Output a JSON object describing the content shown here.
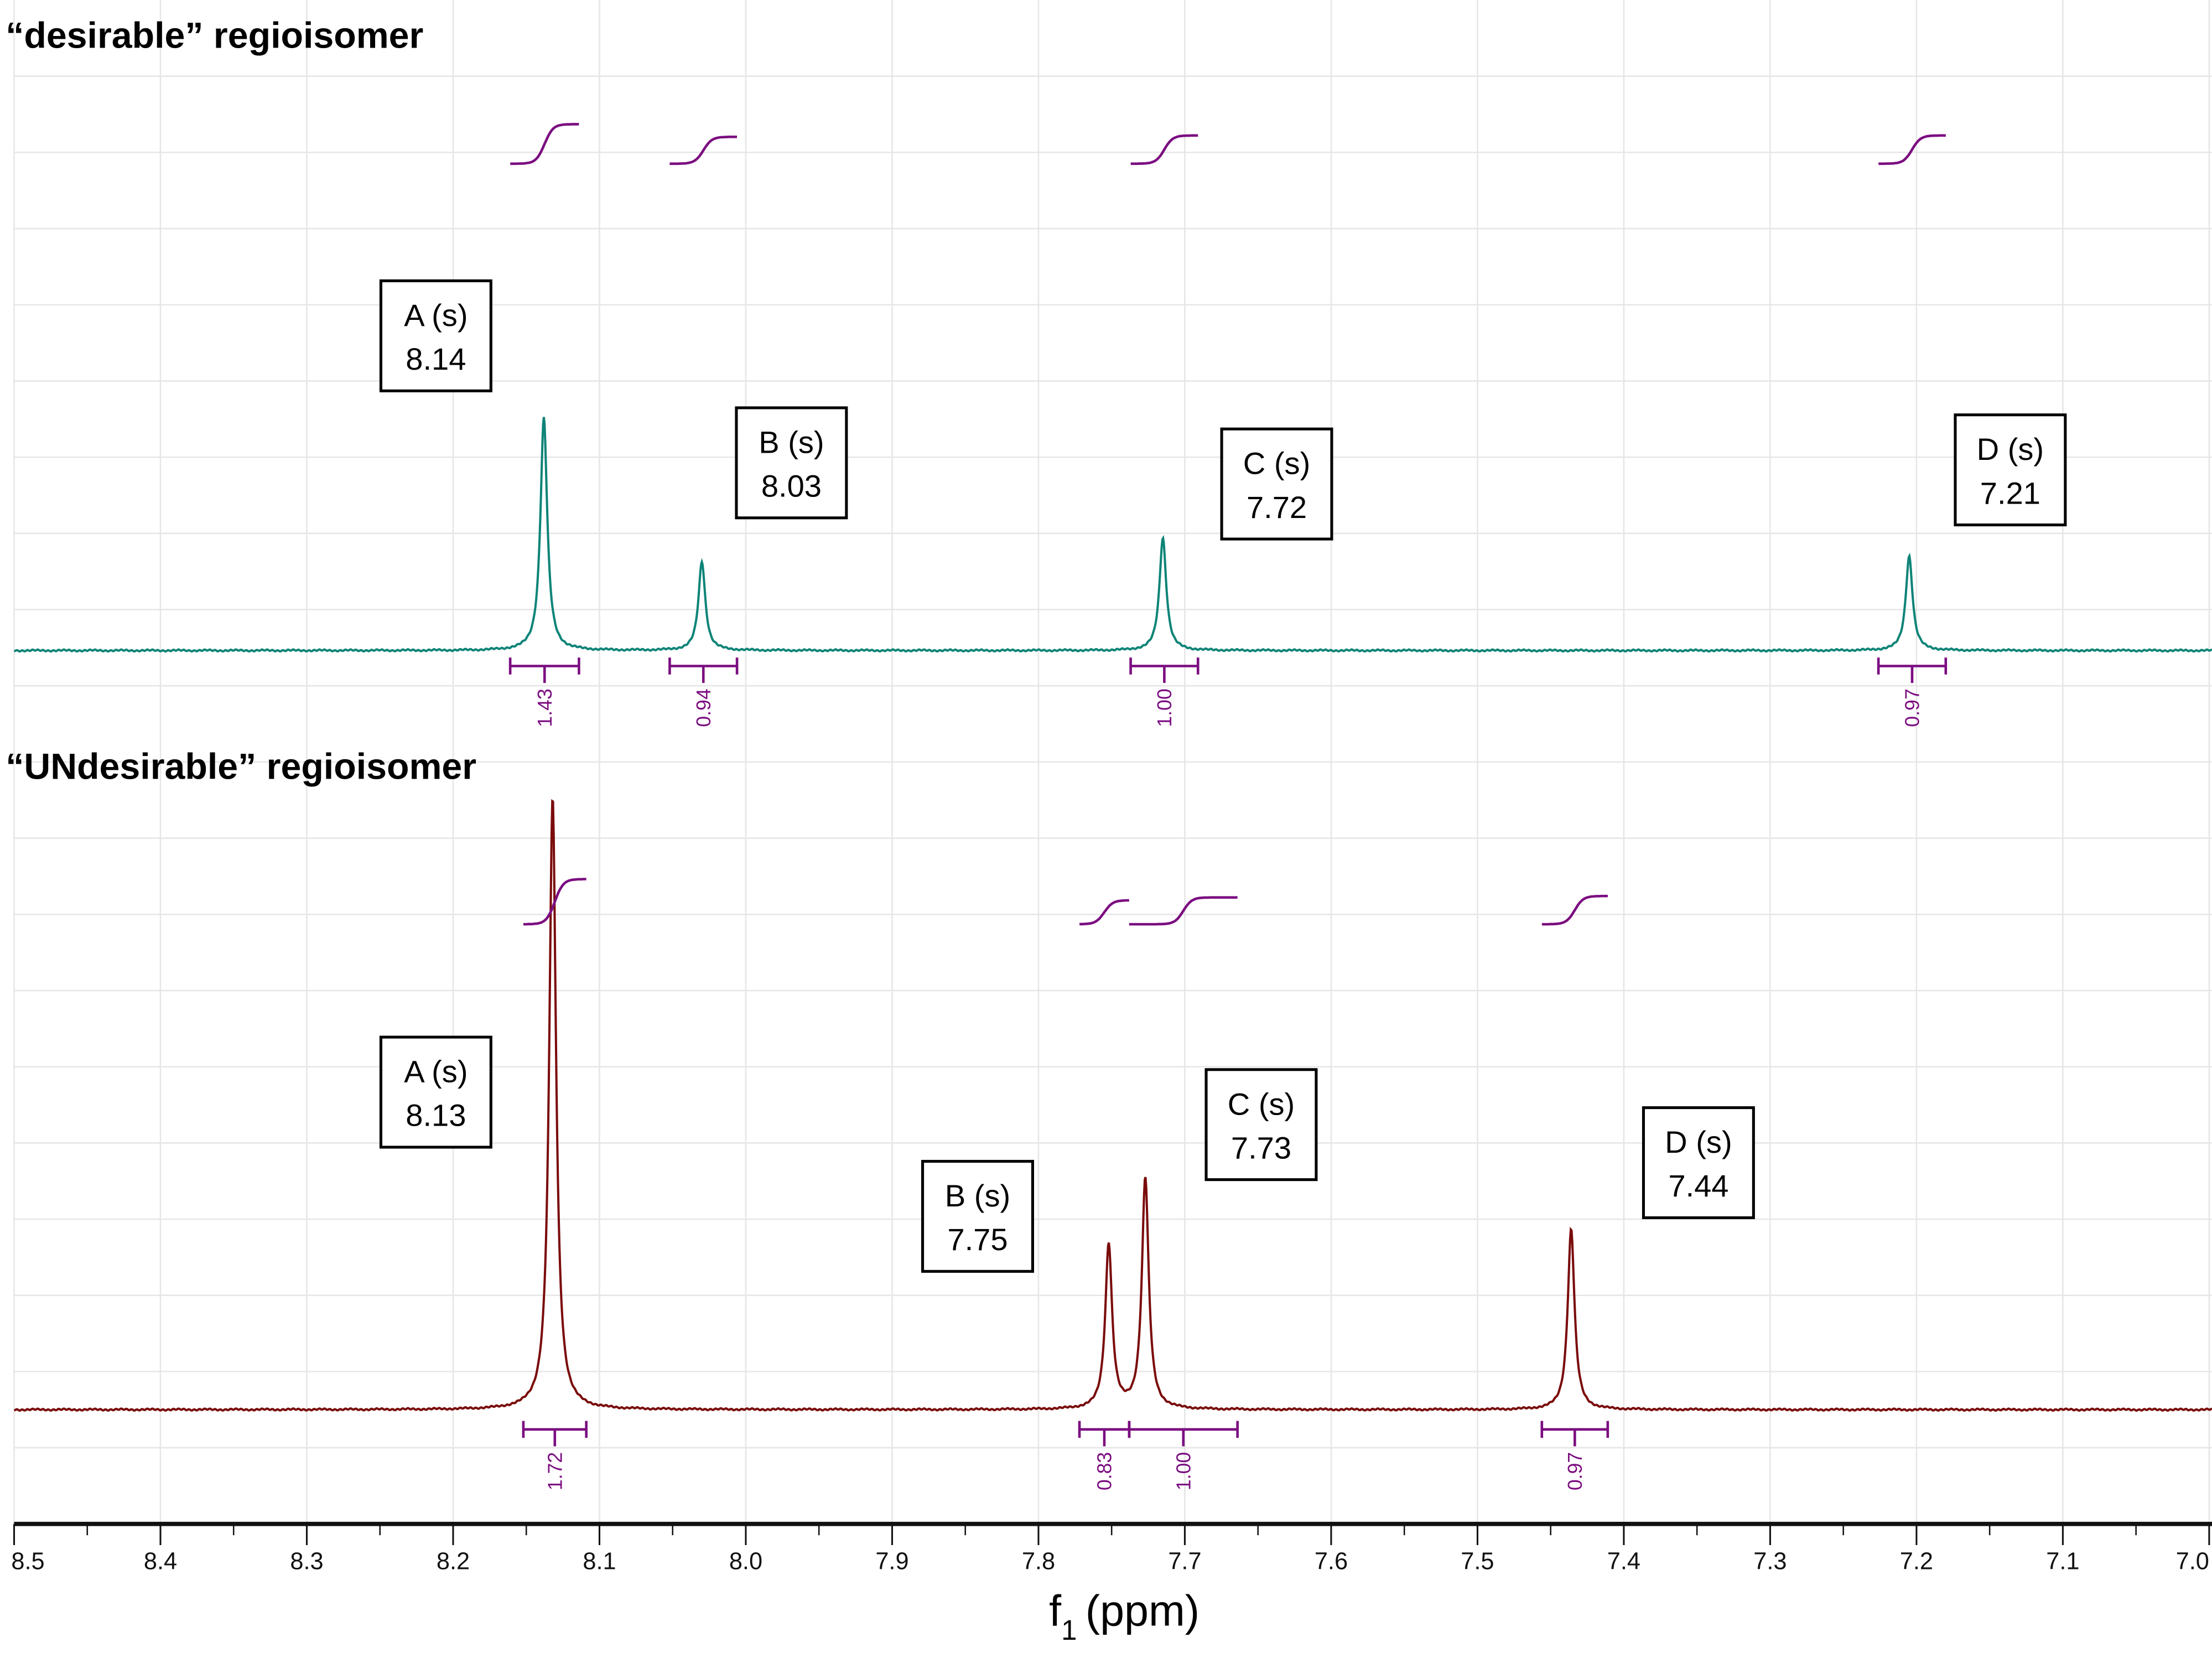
{
  "chart_data": [
    {
      "type": "line",
      "title": "“desirable” regioisomer",
      "xlabel": "f1 (ppm)",
      "xlim": [
        8.5,
        7.0
      ],
      "color": "#0f8478",
      "intensity_units": "a.u.",
      "peaks": [
        {
          "label": "A (s)",
          "shift": "8.14",
          "ppm": 8.138,
          "intensity": 165
        },
        {
          "label": "B (s)",
          "shift": "8.03",
          "ppm": 8.03,
          "intensity": 63
        },
        {
          "label": "C (s)",
          "shift": "7.72",
          "ppm": 7.715,
          "intensity": 80
        },
        {
          "label": "D (s)",
          "shift": "7.21",
          "ppm": 7.205,
          "intensity": 67
        }
      ],
      "integrals": [
        {
          "value": "1.43",
          "range": [
            8.161,
            8.114
          ],
          "rise": 28
        },
        {
          "value": "0.94",
          "range": [
            8.052,
            8.006
          ],
          "rise": 19
        },
        {
          "value": "1.00",
          "range": [
            7.737,
            7.691
          ],
          "rise": 20
        },
        {
          "value": "0.97",
          "range": [
            7.226,
            7.18
          ],
          "rise": 20
        }
      ]
    },
    {
      "type": "line",
      "title": "“UNdesirable” regioisomer",
      "xlabel": "f1 (ppm)",
      "xlim": [
        8.5,
        7.0
      ],
      "color": "#7a0c0c",
      "intensity_units": "a.u.",
      "peaks": [
        {
          "label": "A (s)",
          "shift": "8.13",
          "ppm": 8.132,
          "intensity": 434
        },
        {
          "label": "B (s)",
          "shift": "7.75",
          "ppm": 7.752,
          "intensity": 117
        },
        {
          "label": "C (s)",
          "shift": "7.73",
          "ppm": 7.727,
          "intensity": 164
        },
        {
          "label": "D (s)",
          "shift": "7.44",
          "ppm": 7.436,
          "intensity": 128
        }
      ],
      "integrals": [
        {
          "value": "1.72",
          "range": [
            8.152,
            8.109
          ],
          "rise": 32
        },
        {
          "value": "0.83",
          "range": [
            7.772,
            7.738
          ],
          "rise": 17
        },
        {
          "value": "1.00",
          "range": [
            7.738,
            7.664
          ],
          "rise": 19
        },
        {
          "value": "0.97",
          "range": [
            7.456,
            7.411
          ],
          "rise": 20
        }
      ]
    }
  ],
  "axis": {
    "ticks": [
      "8.5",
      "8.4",
      "8.3",
      "8.2",
      "8.1",
      "8.0",
      "7.9",
      "7.8",
      "7.7",
      "7.6",
      "7.5",
      "7.4",
      "7.3",
      "7.2",
      "7.1",
      "7.0"
    ],
    "label_main": "f",
    "label_sub": "1",
    "label_unit": "(ppm)"
  },
  "integral_color": "#7b0d80"
}
